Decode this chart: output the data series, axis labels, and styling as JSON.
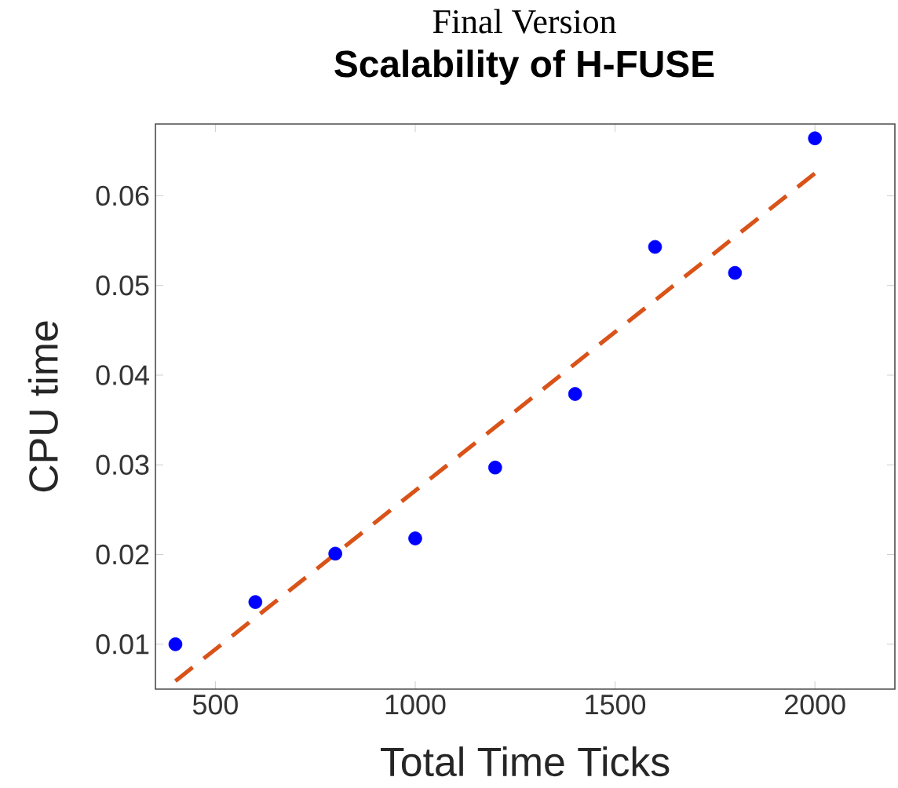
{
  "chart_data": {
    "type": "scatter",
    "subtitle": "Final Version",
    "title": "Scalability of H-FUSE",
    "xlabel": "Total Time Ticks",
    "ylabel": "CPU time",
    "xlim": [
      350,
      2200
    ],
    "ylim": [
      0.005,
      0.068
    ],
    "xticks": [
      500,
      1000,
      1500,
      2000
    ],
    "yticks": [
      0.01,
      0.02,
      0.03,
      0.04,
      0.05,
      0.06
    ],
    "series": [
      {
        "color": "#0000ff",
        "marker": "circle",
        "x": [
          400,
          600,
          800,
          1000,
          1200,
          1400,
          1600,
          1800,
          2000
        ],
        "values": [
          0.01,
          0.0147,
          0.0201,
          0.0218,
          0.0297,
          0.0379,
          0.0543,
          0.0514,
          0.0664
        ]
      },
      {
        "type": "line",
        "color": "#d95319",
        "line_style": "dashed",
        "marker": "none",
        "x": [
          400,
          2000
        ],
        "values": [
          0.0059,
          0.0625
        ]
      }
    ],
    "grid": false
  }
}
